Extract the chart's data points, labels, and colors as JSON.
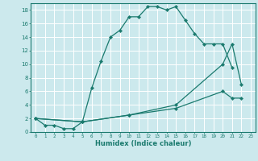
{
  "xlabel": "Humidex (Indice chaleur)",
  "bg_color": "#cce9ed",
  "grid_color": "#ffffff",
  "line_color": "#1a7a6e",
  "xlim": [
    -0.5,
    23.5
  ],
  "ylim": [
    0,
    19
  ],
  "xticks": [
    0,
    1,
    2,
    3,
    4,
    5,
    6,
    7,
    8,
    9,
    10,
    11,
    12,
    13,
    14,
    15,
    16,
    17,
    18,
    19,
    20,
    21,
    22,
    23
  ],
  "yticks": [
    0,
    2,
    4,
    6,
    8,
    10,
    12,
    14,
    16,
    18
  ],
  "line1_x": [
    0,
    1,
    2,
    3,
    4,
    5,
    6,
    7,
    8,
    9,
    10,
    11,
    12,
    13,
    14,
    15,
    16,
    17,
    18,
    19,
    20,
    21
  ],
  "line1_y": [
    2,
    1,
    1,
    0.5,
    0.5,
    1.5,
    6.5,
    10.5,
    14,
    15,
    17,
    17,
    18.5,
    18.5,
    18,
    18.5,
    16.5,
    14.5,
    13,
    13,
    13,
    9.5
  ],
  "line2_x": [
    0,
    5,
    10,
    15,
    20,
    21,
    22
  ],
  "line2_y": [
    2,
    1.5,
    2.5,
    4,
    10,
    13,
    7
  ],
  "line3_x": [
    0,
    5,
    10,
    15,
    20,
    21,
    22
  ],
  "line3_y": [
    2,
    1.5,
    2.5,
    3.5,
    6,
    5,
    5
  ]
}
